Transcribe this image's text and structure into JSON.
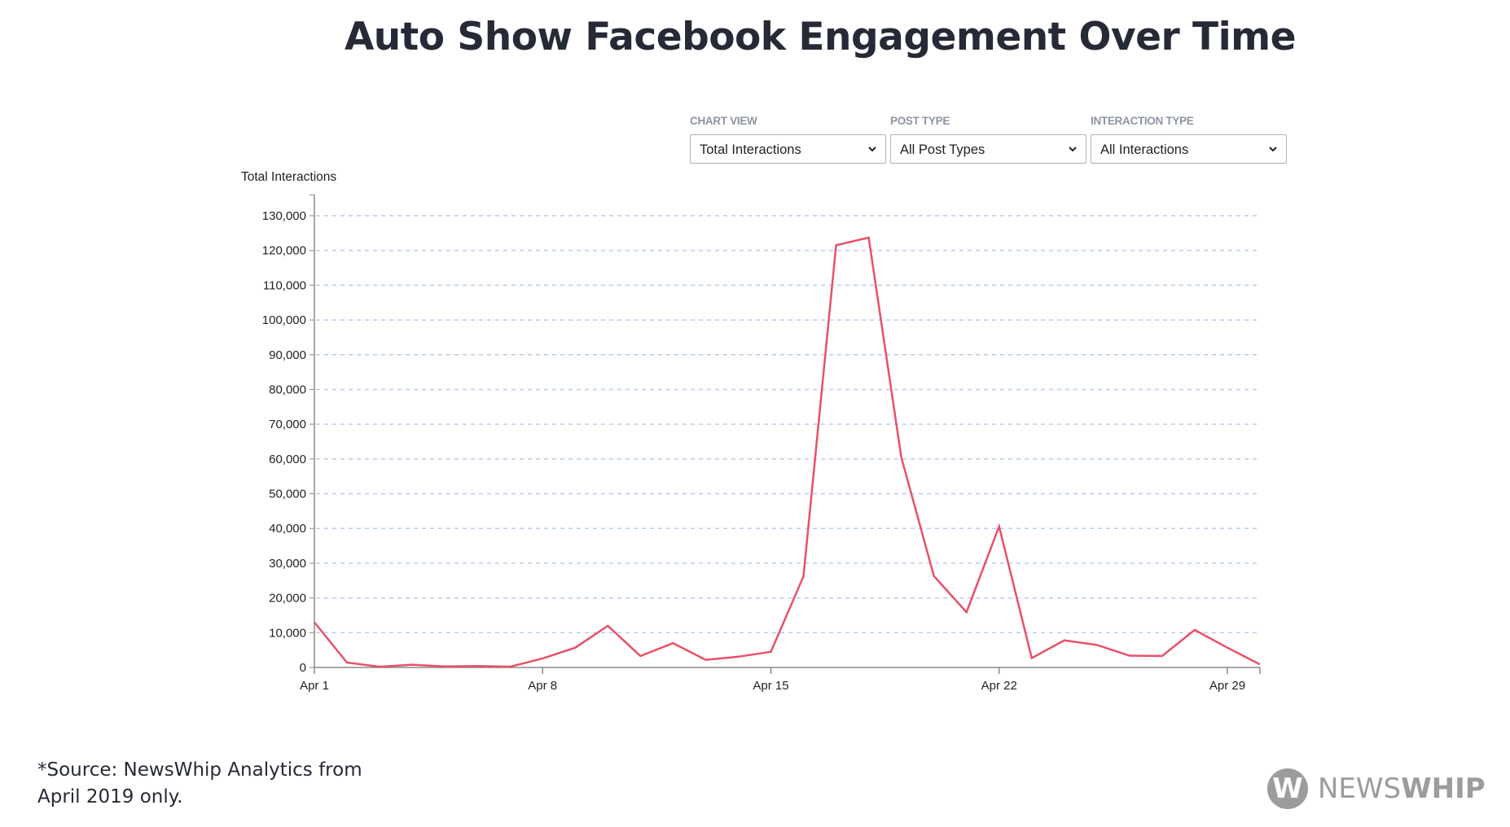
{
  "title": "Auto Show Facebook Engagement Over Time",
  "filters": [
    {
      "label": "CHART VIEW",
      "value": "Total Interactions"
    },
    {
      "label": "POST TYPE",
      "value": "All Post Types"
    },
    {
      "label": "INTERACTION TYPE",
      "value": "All Interactions"
    }
  ],
  "icons": {
    "dropdown": "chevron-down-icon",
    "logo": "newswhip-w-icon"
  },
  "colors": {
    "line": "#e8506a",
    "grid": "#b9cdf0",
    "axis": "#8a8a8a",
    "text": "#222222",
    "title": "#262a36",
    "logo": "#9c9c9c"
  },
  "footer": {
    "source_line1": "*Source: NewsWhip Analytics from",
    "source_line2": "April 2019 only."
  },
  "logo": {
    "mark": "W",
    "text_light": "NEWS",
    "text_bold": "WHIP"
  },
  "chart_data": {
    "type": "line",
    "title": "Auto Show Facebook Engagement Over Time",
    "xlabel": "",
    "ylabel": "Total Interactions",
    "x": [
      "Apr 1",
      "Apr 2",
      "Apr 3",
      "Apr 4",
      "Apr 5",
      "Apr 6",
      "Apr 7",
      "Apr 8",
      "Apr 9",
      "Apr 10",
      "Apr 11",
      "Apr 12",
      "Apr 13",
      "Apr 14",
      "Apr 15",
      "Apr 16",
      "Apr 17",
      "Apr 18",
      "Apr 19",
      "Apr 20",
      "Apr 21",
      "Apr 22",
      "Apr 23",
      "Apr 24",
      "Apr 25",
      "Apr 26",
      "Apr 27",
      "Apr 28",
      "Apr 29",
      "Apr 30"
    ],
    "x_ticks": [
      "Apr 1",
      "Apr 8",
      "Apr 15",
      "Apr 22",
      "Apr 29"
    ],
    "series": [
      {
        "name": "Total Interactions",
        "values": [
          13000,
          1400,
          200,
          800,
          300,
          400,
          200,
          2600,
          5700,
          12000,
          3300,
          7000,
          2200,
          3100,
          4500,
          26200,
          121500,
          123700,
          60500,
          26300,
          15900,
          40600,
          2700,
          7800,
          6500,
          3400,
          3300,
          10800,
          5700,
          900
        ]
      }
    ],
    "y_ticks": [
      0,
      10000,
      20000,
      30000,
      40000,
      50000,
      60000,
      70000,
      80000,
      90000,
      100000,
      110000,
      120000,
      130000
    ],
    "y_tick_labels": [
      "0",
      "10,000",
      "20,000",
      "30,000",
      "40,000",
      "50,000",
      "60,000",
      "70,000",
      "80,000",
      "90,000",
      "100,000",
      "110,000",
      "120,000",
      "130,000"
    ],
    "ylim": [
      0,
      136000
    ],
    "grid": true,
    "legend": "none"
  }
}
